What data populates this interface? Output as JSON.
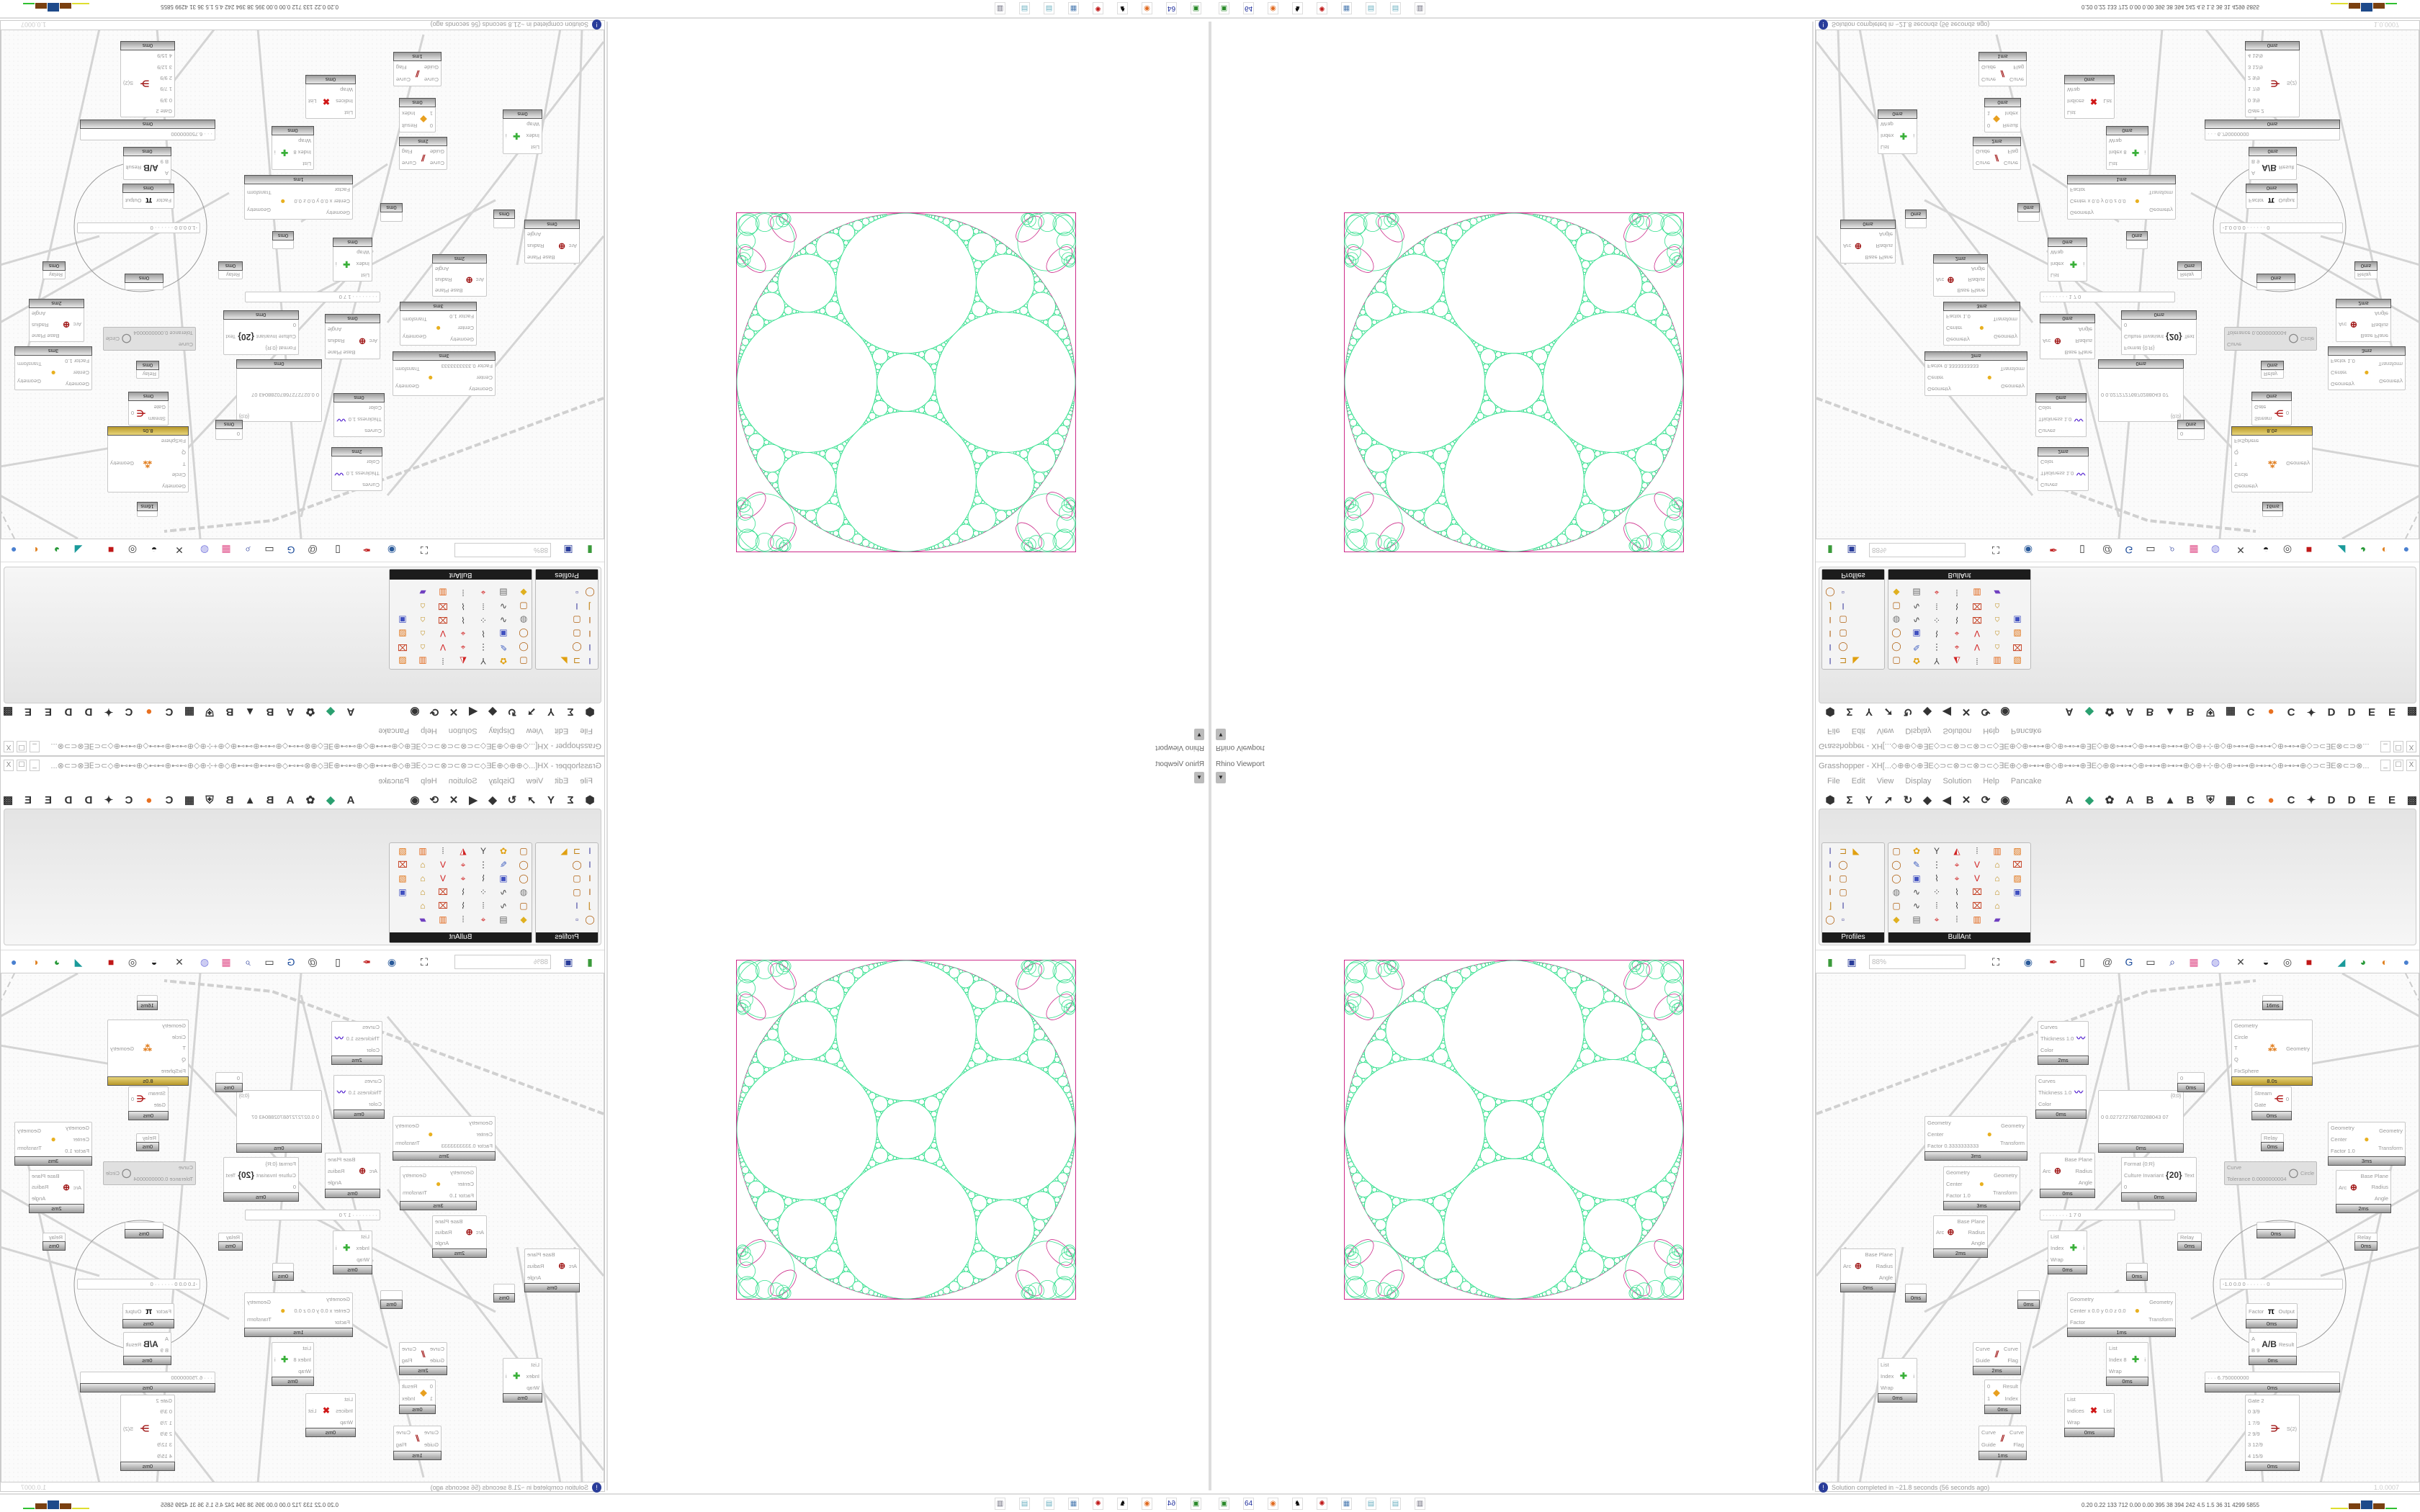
{
  "viewport": {
    "label": "Rhino Viewport",
    "dropdown_glyph": "▼"
  },
  "grasshopper": {
    "title": "Grasshopper - XH[...◇⊕⊕◇⊕∃E◇⊃⊂⊗⊃⊂⊗⊃⊂◇∃E⊕◇⊕⊶⊶⊕◇⊕⊶⊶⊕∃E◇⊕⊗⊶⊶◇⊕⊶⊶⊕⊶⊶⊕◇⊕+⊹⊕◇⊕⊶⊶⊕⊶⊶◇⊕⊶⊶⊕◇⊃⊂∃E⊗⊂⊃⊗...",
    "window_buttons": [
      "_",
      "☐",
      "X"
    ],
    "menu": [
      "File",
      "Edit",
      "View",
      "Display",
      "Solution",
      "Help",
      "Pancake"
    ],
    "category_tabs_left": [
      "⬢",
      "Σ",
      "Y",
      "➚",
      "↻",
      "◆",
      "◀",
      "✕",
      "⟳",
      "◉"
    ],
    "category_tabs_right": [
      "A",
      "◆",
      "✿",
      "A",
      "B",
      "▲",
      "B",
      "⛨",
      "▦",
      "C",
      "●",
      "C",
      "✦",
      "D",
      "D",
      "E",
      "E",
      "▩"
    ],
    "panels": [
      {
        "title": "Profiles",
        "icons": [
          "I-beam",
          "channel",
          "fillet",
          "I-beam",
          "ring",
          "",
          "I",
          "box",
          "",
          "I",
          "box",
          "",
          "angle",
          "I-beam",
          "",
          "ring",
          "points",
          ""
        ]
      },
      {
        "title": "BullAnt",
        "icons": [
          "box",
          "flower",
          "Y",
          "plane",
          "chain",
          "pipe",
          "graph",
          "ring",
          "brush",
          "grid",
          "net",
          "V",
          "lock",
          "frame",
          "ring",
          "cube",
          "path",
          "net",
          "V",
          "lock",
          "graph",
          "sphere",
          "curve",
          "dots",
          "path",
          "frame",
          "lock",
          "cube",
          "box",
          "curve",
          "chain",
          "path",
          "frame",
          "lock",
          "",
          "gem",
          "panel",
          "net",
          "chain",
          "pipe",
          "rainbow",
          ""
        ]
      }
    ],
    "canvas_toolbar": {
      "zoom": "88%",
      "icons": [
        "new-file",
        "save",
        "zoom-extents",
        "eye",
        "sketch",
        "bake",
        "preview",
        "gha",
        "window",
        "search",
        "package",
        "bulb",
        "cross",
        "bell",
        "ring",
        "red-box",
        "tube",
        "ball",
        "half-sphere",
        "sphere"
      ]
    },
    "canvas": {
      "nodes": [
        {
          "in": [
            "Curves",
            "Thickness 1.0",
            "Color"
          ],
          "out": [],
          "icon": "〰",
          "color": "#5a2bd0",
          "footer": "2ms"
        },
        {
          "in": [
            "Curves",
            "Thickness 1.0",
            "Color"
          ],
          "out": [],
          "icon": "〰",
          "color": "#5a2bd0",
          "footer": "0ms"
        },
        {
          "in": [
            "Geometry",
            "Circle",
            "T",
            "Q",
            "FixSphere"
          ],
          "out": [
            "Geometry"
          ],
          "icon": "⁂",
          "color": "#e07a18",
          "footer": "8.0s",
          "hot": true
        },
        {
          "in": [
            "0  0.02727276870288043 07"
          ],
          "out": [],
          "icon": "{0;0}",
          "color": "#999",
          "footer": "0ms",
          "panel": true
        },
        {
          "in": [
            "Geometry",
            "Center",
            "Factor 0.3333333333"
          ],
          "out": [
            "Geometry",
            "Transform"
          ],
          "icon": "●",
          "color": "#e8b020",
          "footer": "3ms"
        },
        {
          "in": [
            "Geometry",
            "Center",
            "Factor 1.0"
          ],
          "out": [
            "Geometry",
            "Transform"
          ],
          "icon": "●",
          "color": "#e8b020",
          "footer": "3ms"
        },
        {
          "in": [
            "Arc"
          ],
          "out": [
            "Base Plane",
            "Radius",
            "Angle"
          ],
          "icon": "⊕",
          "color": "#a01818",
          "footer": "0ms"
        },
        {
          "in": [
            "Format {0:R}",
            "Culture Invariant",
            "0"
          ],
          "out": [
            "Text"
          ],
          "icon": "{20}",
          "color": "#333",
          "footer": "0ms"
        },
        {
          "in": [
            "Curve",
            "Tolerance 0.0000000004"
          ],
          "out": [
            "Circle"
          ],
          "icon": "◯",
          "color": "#888",
          "footer": "",
          "disabled": true
        },
        {
          "in": [
            "Stream",
            "Gate"
          ],
          "out": [
            "0"
          ],
          "icon": "⋲",
          "color": "#b01818",
          "footer": "0ms"
        },
        {
          "in": [
            "Relay"
          ],
          "out": [],
          "icon": "",
          "color": "#999",
          "footer": "0ms"
        },
        {
          "in": [
            "Geometry",
            "Center",
            "Factor 1.0"
          ],
          "out": [
            "Geometry",
            "Transform"
          ],
          "icon": "●",
          "color": "#e8b020",
          "footer": "3ms"
        },
        {
          "in": [
            "Arc"
          ],
          "out": [
            "Base Plane",
            "Radius",
            "Angle"
          ],
          "icon": "⊕",
          "color": "#a01818",
          "footer": "2ms"
        },
        {
          "in": [
            "0"
          ],
          "out": [],
          "icon": "",
          "color": "#999",
          "footer": "0ms"
        },
        {
          "in": [
            "· · · · · · · · 1 7 0"
          ],
          "out": [],
          "icon": "",
          "color": "#999",
          "footer": "",
          "slider": true
        },
        {
          "in": [],
          "out": [],
          "icon": "",
          "color": "#999",
          "footer": "16ms"
        },
        {
          "in": [
            "Arc"
          ],
          "out": [
            "Base Plane",
            "Radius",
            "Angle"
          ],
          "icon": "⊕",
          "color": "#a01818",
          "footer": "0ms"
        },
        {
          "in": [
            "Arc"
          ],
          "out": [
            "Base Plane",
            "Radius",
            "Angle"
          ],
          "icon": "⊕",
          "color": "#a01818",
          "footer": "2ms"
        },
        {
          "in": [],
          "out": [],
          "icon": "",
          "color": "#999",
          "footer": "0ms"
        },
        {
          "in": [
            "List",
            "Index",
            "Wrap"
          ],
          "out": [
            "i"
          ],
          "icon": "✚",
          "color": "#3ab03a",
          "footer": "0ms"
        },
        {
          "in": [],
          "out": [],
          "icon": "",
          "color": "#999",
          "footer": "0ms"
        },
        {
          "in": [],
          "out": [],
          "icon": "",
          "color": "#999",
          "footer": "0ms"
        },
        {
          "in": [
            "Geometry",
            "Center x 0.0 y 0.0 z 0.0",
            "Factor"
          ],
          "out": [
            "Geometry",
            "Transform"
          ],
          "icon": "●",
          "color": "#e8b020",
          "footer": "1ms"
        },
        {
          "in": [
            "Relay"
          ],
          "out": [],
          "icon": "",
          "color": "#999",
          "footer": "0ms"
        },
        {
          "in": [
            "Relay"
          ],
          "out": [],
          "icon": "",
          "color": "#999",
          "footer": "0ms"
        },
        {
          "in": [],
          "out": [],
          "icon": "",
          "color": "#999",
          "footer": "0ms"
        },
        {
          "in": [
            "-1.0  0.0  0  · · · · · · 0"
          ],
          "out": [],
          "icon": "",
          "color": "#999",
          "footer": "",
          "slider": true
        },
        {
          "in": [
            "Factor"
          ],
          "out": [
            "Output"
          ],
          "icon": "π",
          "color": "#111",
          "footer": "0ms"
        },
        {
          "in": [
            "A",
            "B 9"
          ],
          "out": [
            "Result"
          ],
          "icon": "A/B",
          "color": "#333",
          "footer": "0ms"
        },
        {
          "in": [
            "· · · 6.750000000"
          ],
          "out": [],
          "icon": "",
          "color": "#999",
          "footer": "0ms",
          "slider": true
        },
        {
          "in": [
            "Gate 2",
            "0 3/9",
            "1 7/9",
            "2 9/9",
            "3 12/9",
            "4 15/9"
          ],
          "out": [
            "S(2)"
          ],
          "icon": "⋺",
          "color": "#a01818",
          "footer": "0ms"
        },
        {
          "in": [
            "List",
            "Index",
            "Wrap"
          ],
          "out": [
            "i"
          ],
          "icon": "✚",
          "color": "#3ab03a",
          "footer": "0ms"
        },
        {
          "in": [
            "Curve",
            "Guide"
          ],
          "out": [
            "Curve",
            "Flag"
          ],
          "icon": "⫽",
          "color": "#a01818",
          "footer": "2ms"
        },
        {
          "in": [
            "0",
            "1"
          ],
          "out": [
            "Result",
            "Index"
          ],
          "icon": "◆",
          "color": "#e8a020",
          "footer": "0ms"
        },
        {
          "in": [
            "Curve",
            "Guide"
          ],
          "out": [
            "Curve",
            "Flag"
          ],
          "icon": "⫽",
          "color": "#a01818",
          "footer": "1ms"
        },
        {
          "in": [
            "List",
            "Index 8",
            "Wrap"
          ],
          "out": [
            "i"
          ],
          "icon": "✚",
          "color": "#3ab03a",
          "footer": "0ms"
        },
        {
          "in": [
            "List",
            "Indices",
            "Wrap"
          ],
          "out": [
            "List"
          ],
          "icon": "✖",
          "color": "#d01818",
          "footer": "0ms"
        }
      ]
    },
    "status": {
      "info_glyph": "!",
      "message": "Solution completed in ~21.8 seconds (56 seconds ago)",
      "version": "1.0.0007"
    }
  },
  "taskbar": {
    "apps": [
      "monitor",
      "floppy-64",
      "firefox",
      "inkscape",
      "red-app",
      "calculator",
      "notepad",
      "notepad",
      "document"
    ],
    "perf": "0.20 0.22 133 712 0.00 0.00 395 38 394 242 4.5 1.5 36 31 4299 5855"
  },
  "colors": {
    "gasket": "#36e08f",
    "outer": "#cc2b8a",
    "accent": "#2a3d9a",
    "highlight": "#d4b84a"
  }
}
